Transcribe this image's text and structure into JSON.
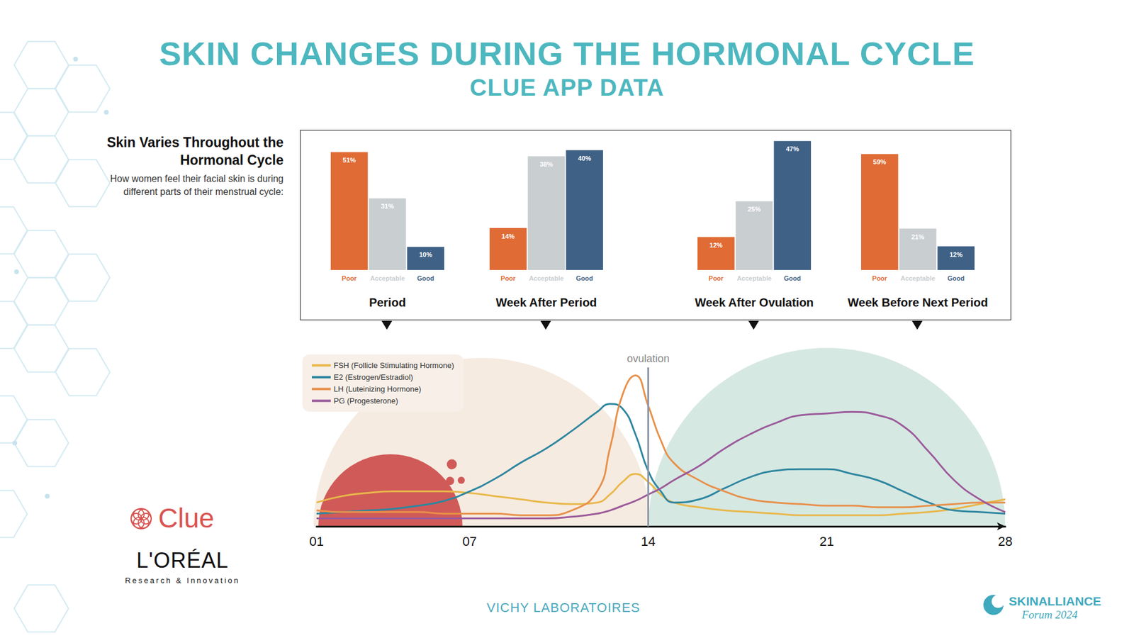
{
  "title": "SKIN CHANGES DURING THE HORMONAL CYCLE",
  "subtitle": "CLUE APP DATA",
  "bar_heading": {
    "title": "Skin Varies Throughout the Hormonal Cycle",
    "text": "How women feel their facial skin is during different parts of their menstrual cycle:"
  },
  "logos": {
    "clue": "Clue",
    "loreal": "L'ORÉAL",
    "loreal_sub": "Research & Innovation",
    "footer": "VICHY LABORATOIRES",
    "forum": "SKINALLIANCE",
    "forum_sub": "Forum 2024"
  },
  "chart_data": [
    {
      "type": "bar",
      "title": "Period",
      "categories": [
        "Poor",
        "Acceptable",
        "Good"
      ],
      "values": [
        51,
        31,
        10
      ],
      "value_labels": [
        "51%",
        "31%",
        "10%"
      ],
      "colors": [
        "#e06b35",
        "#c9ced1",
        "#3f6185"
      ],
      "ylim": [
        0,
        57
      ],
      "data_labels": true,
      "tick_labels": "x",
      "grid": false
    },
    {
      "type": "bar",
      "title": "Week After Period",
      "categories": [
        "Poor",
        "Acceptable",
        "Good"
      ],
      "values": [
        14,
        38,
        40
      ],
      "value_labels": [
        "14%",
        "38%",
        "40%"
      ],
      "colors": [
        "#e06b35",
        "#c9ced1",
        "#3f6185"
      ],
      "ylim": [
        0,
        44
      ],
      "data_labels": true,
      "tick_labels": "x",
      "grid": false
    },
    {
      "type": "bar",
      "title": "Week After Ovulation",
      "categories": [
        "Poor",
        "Acceptable",
        "Good"
      ],
      "values": [
        12,
        25,
        47
      ],
      "value_labels": [
        "12%",
        "25%",
        "47%"
      ],
      "colors": [
        "#e06b35",
        "#c9ced1",
        "#3f6185"
      ],
      "ylim": [
        0,
        48
      ],
      "data_labels": true,
      "tick_labels": "x",
      "grid": false
    },
    {
      "type": "bar",
      "title": "Week Before Next Period",
      "categories": [
        "Poor",
        "Acceptable",
        "Good"
      ],
      "values": [
        59,
        21,
        12
      ],
      "value_labels": [
        "59%",
        "21%",
        "12%"
      ],
      "colors": [
        "#e06b35",
        "#c9ced1",
        "#3f6185"
      ],
      "ylim": [
        0,
        67
      ],
      "data_labels": true,
      "tick_labels": "x",
      "grid": false
    },
    {
      "type": "line",
      "x": [
        1,
        2,
        3,
        4,
        5,
        6,
        7,
        8,
        9,
        10,
        11,
        12,
        12.5,
        13,
        13.5,
        14,
        14.5,
        15,
        16,
        17,
        18,
        19,
        20,
        21,
        22,
        23,
        24,
        25,
        26,
        27,
        28
      ],
      "xlim": [
        1,
        28
      ],
      "xticks": [
        {
          "value": 1,
          "label": "01"
        },
        {
          "value": 7,
          "label": "07"
        },
        14,
        21,
        28
      ],
      "ylim": [
        0,
        100
      ],
      "tick_labels": "x",
      "grid": false,
      "legend": "top-left",
      "annotations": [
        {
          "text": "ovulation",
          "x": 14
        }
      ],
      "series": [
        {
          "name": "FSH (Follicle Stimulating Hormone)",
          "color": "#e8b84a",
          "values": [
            15,
            19,
            21,
            22,
            22,
            22,
            21,
            19,
            17,
            15,
            14,
            15,
            20,
            28,
            33,
            28,
            20,
            15,
            12,
            10,
            9,
            8,
            7,
            7,
            7,
            7,
            8,
            9,
            11,
            14,
            17
          ]
        },
        {
          "name": "E2 (Estrogen/Estradiol)",
          "color": "#2e86a0",
          "values": [
            8,
            9,
            10,
            11,
            13,
            16,
            22,
            30,
            40,
            49,
            60,
            72,
            77,
            74,
            58,
            35,
            22,
            15,
            17,
            24,
            31,
            35,
            36,
            36,
            33,
            29,
            22,
            15,
            10,
            9,
            8
          ]
        },
        {
          "name": "LH (Luteinizing Hormone)",
          "color": "#e8904a",
          "values": [
            10,
            9,
            9,
            9,
            9,
            8,
            8,
            8,
            7,
            7,
            10,
            22,
            49,
            83,
            95,
            76,
            54,
            40,
            29,
            22,
            17,
            15,
            14,
            13,
            13,
            12,
            12,
            13,
            14,
            15,
            15
          ]
        },
        {
          "name": "PG (Progesterone)",
          "color": "#9b5a9a",
          "values": [
            5,
            5,
            5,
            5,
            5,
            5,
            5,
            5,
            5,
            5,
            6,
            8,
            10,
            13,
            16,
            20,
            24,
            29,
            38,
            49,
            58,
            65,
            70,
            71,
            72,
            70,
            63,
            47,
            29,
            17,
            9
          ]
        }
      ]
    }
  ]
}
